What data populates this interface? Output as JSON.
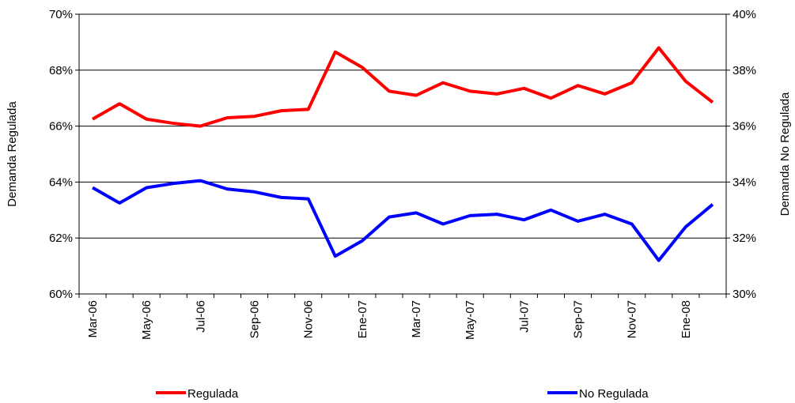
{
  "chart_data": {
    "type": "line",
    "y_label": "Demanda Regulada",
    "y2_label": "Demanda No Regulada",
    "categories": [
      "Mar-06",
      null,
      "May-06",
      null,
      "Jul-06",
      null,
      "Sep-06",
      null,
      "Nov-06",
      null,
      "Ene-07",
      null,
      "Mar-07",
      null,
      "May-07",
      null,
      "Jul-07",
      null,
      "Sep-07",
      null,
      "Nov-07",
      null,
      "Ene-08",
      null
    ],
    "series": [
      {
        "name": "Regulada",
        "color": "#ff0000",
        "values": [
          66.25,
          66.8,
          66.25,
          66.1,
          66.0,
          66.3,
          66.35,
          66.55,
          66.6,
          68.65,
          68.1,
          67.25,
          67.1,
          67.55,
          67.25,
          67.15,
          67.35,
          67.0,
          67.45,
          67.15,
          67.55,
          68.8,
          67.6,
          66.85
        ]
      },
      {
        "name": "No Regulada",
        "color": "#0000ff",
        "axis": "y2",
        "values": [
          33.8,
          33.25,
          33.8,
          33.95,
          34.05,
          33.75,
          33.65,
          33.45,
          33.4,
          31.35,
          31.9,
          32.75,
          32.9,
          32.5,
          32.8,
          32.85,
          32.65,
          33.0,
          32.6,
          32.85,
          32.5,
          31.2,
          32.4,
          33.2
        ]
      }
    ],
    "ylim": [
      60,
      70
    ],
    "yticks": [
      {
        "value": 60,
        "label": "60%"
      },
      {
        "value": 62,
        "label": "62%"
      },
      {
        "value": 64,
        "label": "64%"
      },
      {
        "value": 66,
        "label": "66%"
      },
      {
        "value": 68,
        "label": "68%"
      },
      {
        "value": 70,
        "label": "70%"
      }
    ],
    "y2lim": [
      30,
      40
    ],
    "y2ticks": [
      {
        "value": 30,
        "label": "30%"
      },
      {
        "value": 32,
        "label": "32%"
      },
      {
        "value": 34,
        "label": "34%"
      },
      {
        "value": 36,
        "label": "36%"
      },
      {
        "value": 38,
        "label": "38%"
      },
      {
        "value": 40,
        "label": "40%"
      }
    ],
    "grid": true,
    "legend": "bottom"
  }
}
